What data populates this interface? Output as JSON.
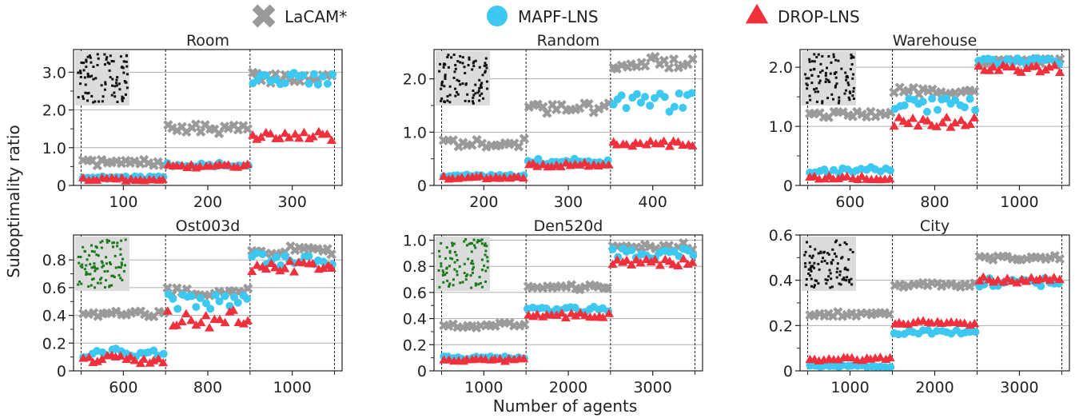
{
  "figure": {
    "legend": [
      {
        "name": "LaCAM*",
        "marker": "x-cross",
        "color": "#9a9a9a"
      },
      {
        "name": "MAPF-LNS",
        "marker": "circle",
        "color": "#3cc8f0"
      },
      {
        "name": "DROP-LNS",
        "marker": "triangle",
        "color": "#f0303c"
      }
    ],
    "ylabel": "Suboptimality ratio",
    "xlabel": "Number of agents"
  },
  "chart_data": [
    {
      "type": "scatter",
      "title": "Room",
      "ylim": [
        0,
        3.6
      ],
      "yticks": [
        0,
        1.0,
        2.0,
        3.0
      ],
      "yticklabels": [
        "0",
        "1.0",
        "2.0",
        "3.0"
      ],
      "grid": "horizontal",
      "groups": [
        {
          "range": [
            50,
            150
          ],
          "label": "100",
          "center": 100
        },
        {
          "range": [
            150,
            250
          ],
          "label": "200",
          "center": 200
        },
        {
          "range": [
            250,
            350
          ],
          "label": "300",
          "center": 300
        }
      ],
      "series": [
        {
          "name": "LaCAM*",
          "group_means": [
            0.6,
            1.5,
            2.85
          ],
          "spread": [
            0.08,
            0.12,
            0.15
          ]
        },
        {
          "name": "MAPF-LNS",
          "group_means": [
            0.2,
            0.55,
            2.8
          ],
          "spread": [
            0.04,
            0.05,
            0.2
          ]
        },
        {
          "name": "DROP-LNS",
          "group_means": [
            0.15,
            0.5,
            1.3
          ],
          "spread": [
            0.04,
            0.05,
            0.12
          ]
        }
      ]
    },
    {
      "type": "scatter",
      "title": "Random",
      "ylim": [
        0,
        2.55
      ],
      "yticks": [
        0,
        1.0,
        2.0
      ],
      "yticklabels": [
        "0",
        "1.0",
        "2.0"
      ],
      "grid": "horizontal",
      "groups": [
        {
          "range": [
            150,
            250
          ],
          "label": "200",
          "center": 200
        },
        {
          "range": [
            250,
            350
          ],
          "label": "300",
          "center": 300
        },
        {
          "range": [
            350,
            450
          ],
          "label": "400",
          "center": 400
        }
      ],
      "series": [
        {
          "name": "LaCAM*",
          "group_means": [
            0.8,
            1.45,
            2.3
          ],
          "spread": [
            0.08,
            0.1,
            0.12
          ]
        },
        {
          "name": "MAPF-LNS",
          "group_means": [
            0.18,
            0.45,
            1.55
          ],
          "spread": [
            0.03,
            0.05,
            0.2
          ]
        },
        {
          "name": "DROP-LNS",
          "group_means": [
            0.14,
            0.38,
            0.78
          ],
          "spread": [
            0.03,
            0.04,
            0.06
          ]
        }
      ]
    },
    {
      "type": "scatter",
      "title": "Warehouse",
      "ylim": [
        0,
        2.3
      ],
      "yticks": [
        0,
        1.0,
        2.0
      ],
      "yticklabels": [
        "0",
        "1.0",
        "2.0"
      ],
      "grid": "horizontal",
      "groups": [
        {
          "range": [
            500,
            700
          ],
          "label": "600",
          "center": 600
        },
        {
          "range": [
            700,
            900
          ],
          "label": "800",
          "center": 800
        },
        {
          "range": [
            900,
            1100
          ],
          "label": "1000",
          "center": 1000
        }
      ],
      "series": [
        {
          "name": "LaCAM*",
          "group_means": [
            1.2,
            1.6,
            2.1
          ],
          "spread": [
            0.05,
            0.06,
            0.05
          ]
        },
        {
          "name": "MAPF-LNS",
          "group_means": [
            0.25,
            1.35,
            2.1
          ],
          "spread": [
            0.06,
            0.12,
            0.06
          ]
        },
        {
          "name": "DROP-LNS",
          "group_means": [
            0.12,
            1.05,
            1.95
          ],
          "spread": [
            0.03,
            0.1,
            0.08
          ]
        }
      ]
    },
    {
      "type": "scatter",
      "title": "Ost003d",
      "ylim": [
        0,
        0.98
      ],
      "yticks": [
        0,
        0.2,
        0.4,
        0.6,
        0.8
      ],
      "yticklabels": [
        "0",
        "0.2",
        "0.4",
        "0.6",
        "0.8"
      ],
      "grid": "horizontal",
      "groups": [
        {
          "range": [
            500,
            700
          ],
          "label": "600",
          "center": 600
        },
        {
          "range": [
            700,
            900
          ],
          "label": "800",
          "center": 800
        },
        {
          "range": [
            900,
            1100
          ],
          "label": "1000",
          "center": 1000
        }
      ],
      "series": [
        {
          "name": "LaCAM*",
          "group_means": [
            0.41,
            0.57,
            0.87
          ],
          "spread": [
            0.02,
            0.03,
            0.03
          ]
        },
        {
          "name": "MAPF-LNS",
          "group_means": [
            0.13,
            0.5,
            0.8
          ],
          "spread": [
            0.04,
            0.06,
            0.05
          ]
        },
        {
          "name": "DROP-LNS",
          "group_means": [
            0.08,
            0.37,
            0.75
          ],
          "spread": [
            0.03,
            0.07,
            0.04
          ]
        }
      ]
    },
    {
      "type": "scatter",
      "title": "Den520d",
      "ylim": [
        0,
        1.04
      ],
      "yticks": [
        0,
        0.2,
        0.4,
        0.6,
        0.8,
        1.0
      ],
      "yticklabels": [
        "0",
        "0.2",
        "0.4",
        "0.6",
        "0.8",
        "1.0"
      ],
      "grid": "horizontal",
      "groups": [
        {
          "range": [
            500,
            1500
          ],
          "label": "1000",
          "center": 1000
        },
        {
          "range": [
            1500,
            2500
          ],
          "label": "2000",
          "center": 2000
        },
        {
          "range": [
            2500,
            3500
          ],
          "label": "3000",
          "center": 3000
        }
      ],
      "series": [
        {
          "name": "LaCAM*",
          "group_means": [
            0.35,
            0.64,
            0.95
          ],
          "spread": [
            0.02,
            0.02,
            0.03
          ]
        },
        {
          "name": "MAPF-LNS",
          "group_means": [
            0.1,
            0.47,
            0.9
          ],
          "spread": [
            0.01,
            0.02,
            0.04
          ]
        },
        {
          "name": "DROP-LNS",
          "group_means": [
            0.08,
            0.42,
            0.83
          ],
          "spread": [
            0.01,
            0.02,
            0.03
          ]
        }
      ]
    },
    {
      "type": "scatter",
      "title": "City",
      "ylim": [
        0,
        0.6
      ],
      "yticks": [
        0,
        0.2,
        0.4,
        0.6
      ],
      "yticklabels": [
        "0",
        "0.2",
        "0.4",
        "0.6"
      ],
      "grid": "horizontal",
      "groups": [
        {
          "range": [
            500,
            1500
          ],
          "label": "1000",
          "center": 1000
        },
        {
          "range": [
            1500,
            2500
          ],
          "label": "2000",
          "center": 2000
        },
        {
          "range": [
            2500,
            3500
          ],
          "label": "3000",
          "center": 3000
        }
      ],
      "series": [
        {
          "name": "LaCAM*",
          "group_means": [
            0.25,
            0.38,
            0.5
          ],
          "spread": [
            0.01,
            0.01,
            0.01
          ]
        },
        {
          "name": "MAPF-LNS",
          "group_means": [
            0.02,
            0.17,
            0.39
          ],
          "spread": [
            0.005,
            0.01,
            0.02
          ]
        },
        {
          "name": "DROP-LNS",
          "group_means": [
            0.05,
            0.21,
            0.4
          ],
          "spread": [
            0.008,
            0.01,
            0.015
          ]
        }
      ]
    }
  ]
}
